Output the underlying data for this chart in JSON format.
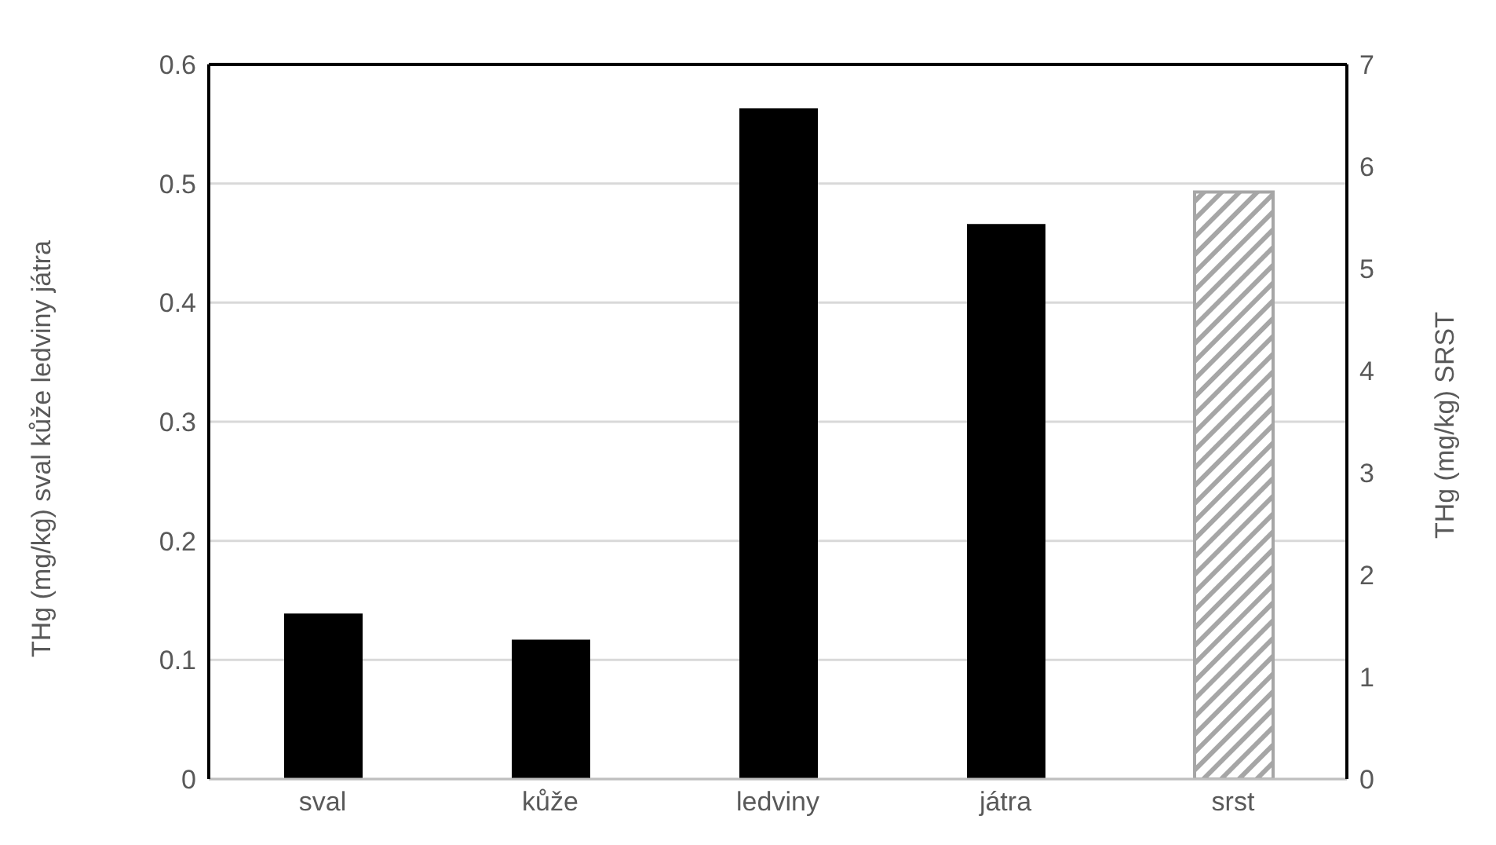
{
  "chart_data": {
    "type": "bar",
    "categories": [
      "sval",
      "kůže",
      "ledviny",
      "játra",
      "srst"
    ],
    "series": [
      {
        "color": "#000000",
        "values": [
          0.139,
          0.117,
          0.563,
          0.466,
          null
        ]
      },
      {
        "color": "#a6a6a6",
        "axis": "y2",
        "values": [
          null,
          null,
          null,
          null,
          5.75
        ]
      }
    ],
    "ylabel": "THg (mg/kg) sval kůže ledviny játra",
    "y2label": "THg (mg/kg) SRST",
    "ylim": [
      0,
      0.6
    ],
    "yticks": [
      0,
      0.1,
      0.2,
      0.3,
      0.4,
      0.5,
      0.6
    ],
    "y2lim": [
      0,
      7
    ],
    "y2ticks": [
      0,
      1,
      2,
      3,
      4,
      5,
      6,
      7
    ],
    "grid": "y",
    "legend": false
  }
}
